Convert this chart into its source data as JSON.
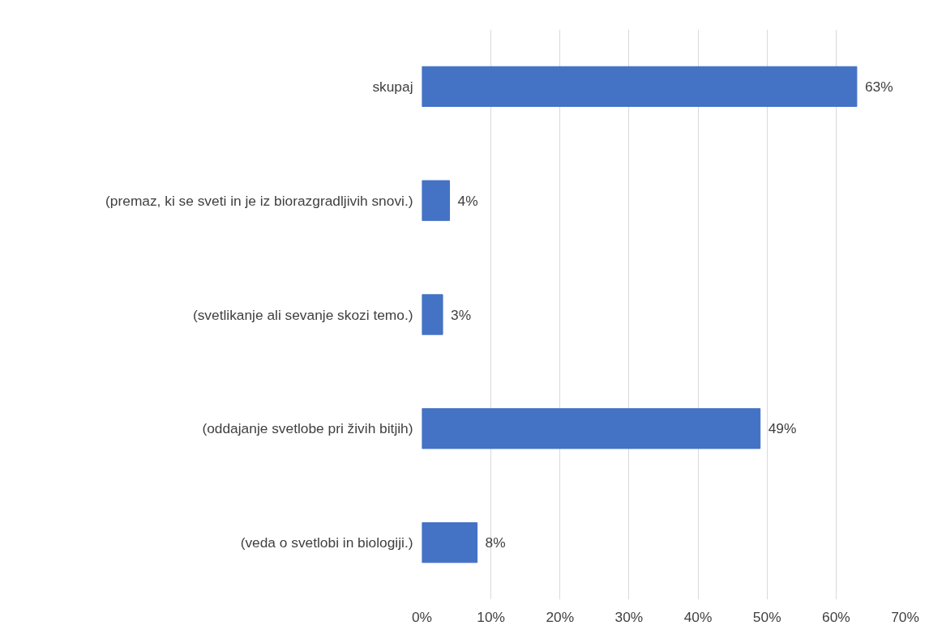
{
  "chart_data": {
    "type": "bar",
    "orientation": "horizontal",
    "categories": [
      "skupaj",
      "(premaz, ki se sveti in je iz biorazgradljivih snovi.)",
      "(svetlikanje ali sevanje skozi temo.)",
      "(oddajanje svetlobe pri živih bitjih)",
      "(veda o svetlobi in biologiji.)"
    ],
    "values": [
      63,
      4,
      3,
      49,
      8
    ],
    "value_labels": [
      "63%",
      "4%",
      "3%",
      "49%",
      "8%"
    ],
    "color": "#4472c4",
    "xlim": [
      0,
      70
    ],
    "xticks": [
      {
        "value": 0,
        "label": "0%"
      },
      {
        "value": 10,
        "label": "10%"
      },
      {
        "value": 20,
        "label": "20%"
      },
      {
        "value": 30,
        "label": "30%"
      },
      {
        "value": 40,
        "label": "40%"
      },
      {
        "value": 50,
        "label": "50%"
      },
      {
        "value": 60,
        "label": "60%"
      },
      {
        "value": 70,
        "label": "70%"
      }
    ],
    "grid": "x"
  }
}
